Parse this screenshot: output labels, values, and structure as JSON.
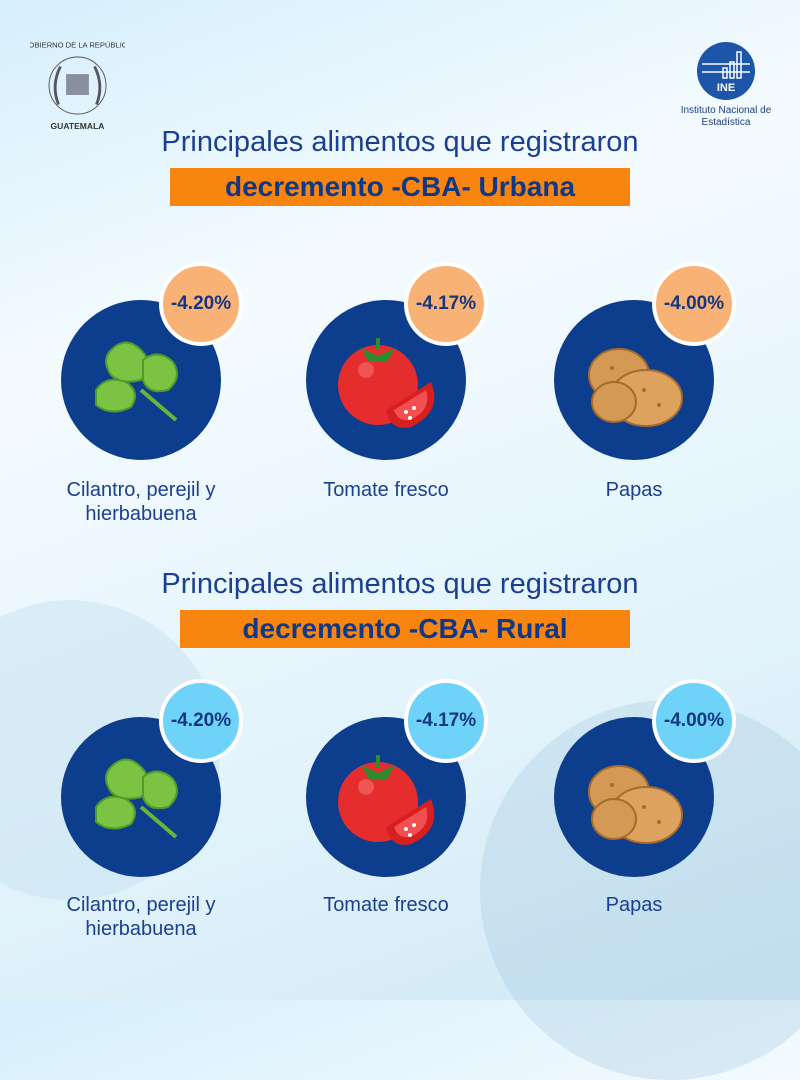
{
  "logos": {
    "government": "GOBIERNO DE LA REPÚBLICA GUATEMALA",
    "ine_abbr": "INE",
    "ine_name": "Instituto Nacional de Estadística"
  },
  "sections": [
    {
      "title": "Principales alimentos que registraron",
      "highlight": "decremento -CBA- Urbana",
      "items": [
        {
          "name": "Cilantro, perejil y hierbabuena",
          "change": "-4.20%",
          "icon": "cilantro-icon"
        },
        {
          "name": "Tomate fresco",
          "change": "-4.17%",
          "icon": "tomato-icon"
        },
        {
          "name": "Papas",
          "change": "-4.00%",
          "icon": "potato-icon"
        }
      ]
    },
    {
      "title": "Principales alimentos que registraron",
      "highlight": "decremento -CBA- Rural",
      "items": [
        {
          "name": "Cilantro, perejil y hierbabuena",
          "change": "-4.20%",
          "icon": "cilantro-icon"
        },
        {
          "name": "Tomate fresco",
          "change": "-4.17%",
          "icon": "tomato-icon"
        },
        {
          "name": "Papas",
          "change": "-4.00%",
          "icon": "potato-icon"
        }
      ]
    }
  ],
  "colors": {
    "orange": "#f7850f",
    "badge_orange": "#f9b276",
    "badge_blue": "#6fd2f8",
    "navy": "#0d3e8e"
  }
}
